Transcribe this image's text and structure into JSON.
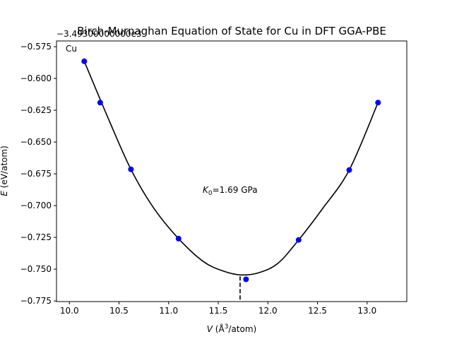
{
  "chart_data": {
    "type": "scatter",
    "title": "Birch-Murnaghan Equation of State for Cu in DFT GGA-PBE",
    "xlabel_var": "V",
    "xlabel_unit_pre": " (Å",
    "xlabel_unit_sup": "3",
    "xlabel_unit_post": "/atom)",
    "ylabel_var": "E",
    "ylabel_unit": " (eV/atom)",
    "y_offset_text": "−3.49300000000e3",
    "species_label": "Cu",
    "bulk_modulus_var": "K",
    "bulk_modulus_sub": "0",
    "bulk_modulus_value": "=1.69 GPa",
    "xlim": [
      9.87,
      13.4
    ],
    "ylim": [
      -0.7755,
      -0.5705
    ],
    "xticks": [
      10.0,
      10.5,
      11.0,
      11.5,
      12.0,
      12.5,
      13.0
    ],
    "xtick_labels": [
      "10.0",
      "10.5",
      "11.0",
      "11.5",
      "12.0",
      "12.5",
      "13.0"
    ],
    "yticks": [
      -0.575,
      -0.6,
      -0.625,
      -0.65,
      -0.675,
      -0.7,
      -0.725,
      -0.75,
      -0.775
    ],
    "ytick_labels": [
      "−0.575",
      "−0.600",
      "−0.625",
      "−0.650",
      "−0.675",
      "−0.700",
      "−0.725",
      "−0.750",
      "−0.775"
    ],
    "points": {
      "x": [
        10.15,
        10.31,
        10.62,
        11.1,
        11.78,
        12.31,
        12.82,
        13.11
      ],
      "y": [
        -0.5865,
        -0.619,
        -0.6715,
        -0.726,
        -0.758,
        -0.727,
        -0.672,
        -0.619
      ],
      "color": "#0000ff"
    },
    "fit_curve": {
      "x": [
        10.15,
        10.4,
        10.62,
        10.85,
        11.1,
        11.35,
        11.55,
        11.72,
        11.9,
        12.1,
        12.31,
        12.55,
        12.82,
        13.11
      ],
      "y": [
        -0.5865,
        -0.633,
        -0.6715,
        -0.702,
        -0.726,
        -0.744,
        -0.7515,
        -0.7545,
        -0.753,
        -0.7455,
        -0.727,
        -0.7025,
        -0.672,
        -0.619
      ],
      "color": "#000000"
    },
    "equilibrium_volume": 11.72,
    "equilibrium_energy": -0.7545
  }
}
